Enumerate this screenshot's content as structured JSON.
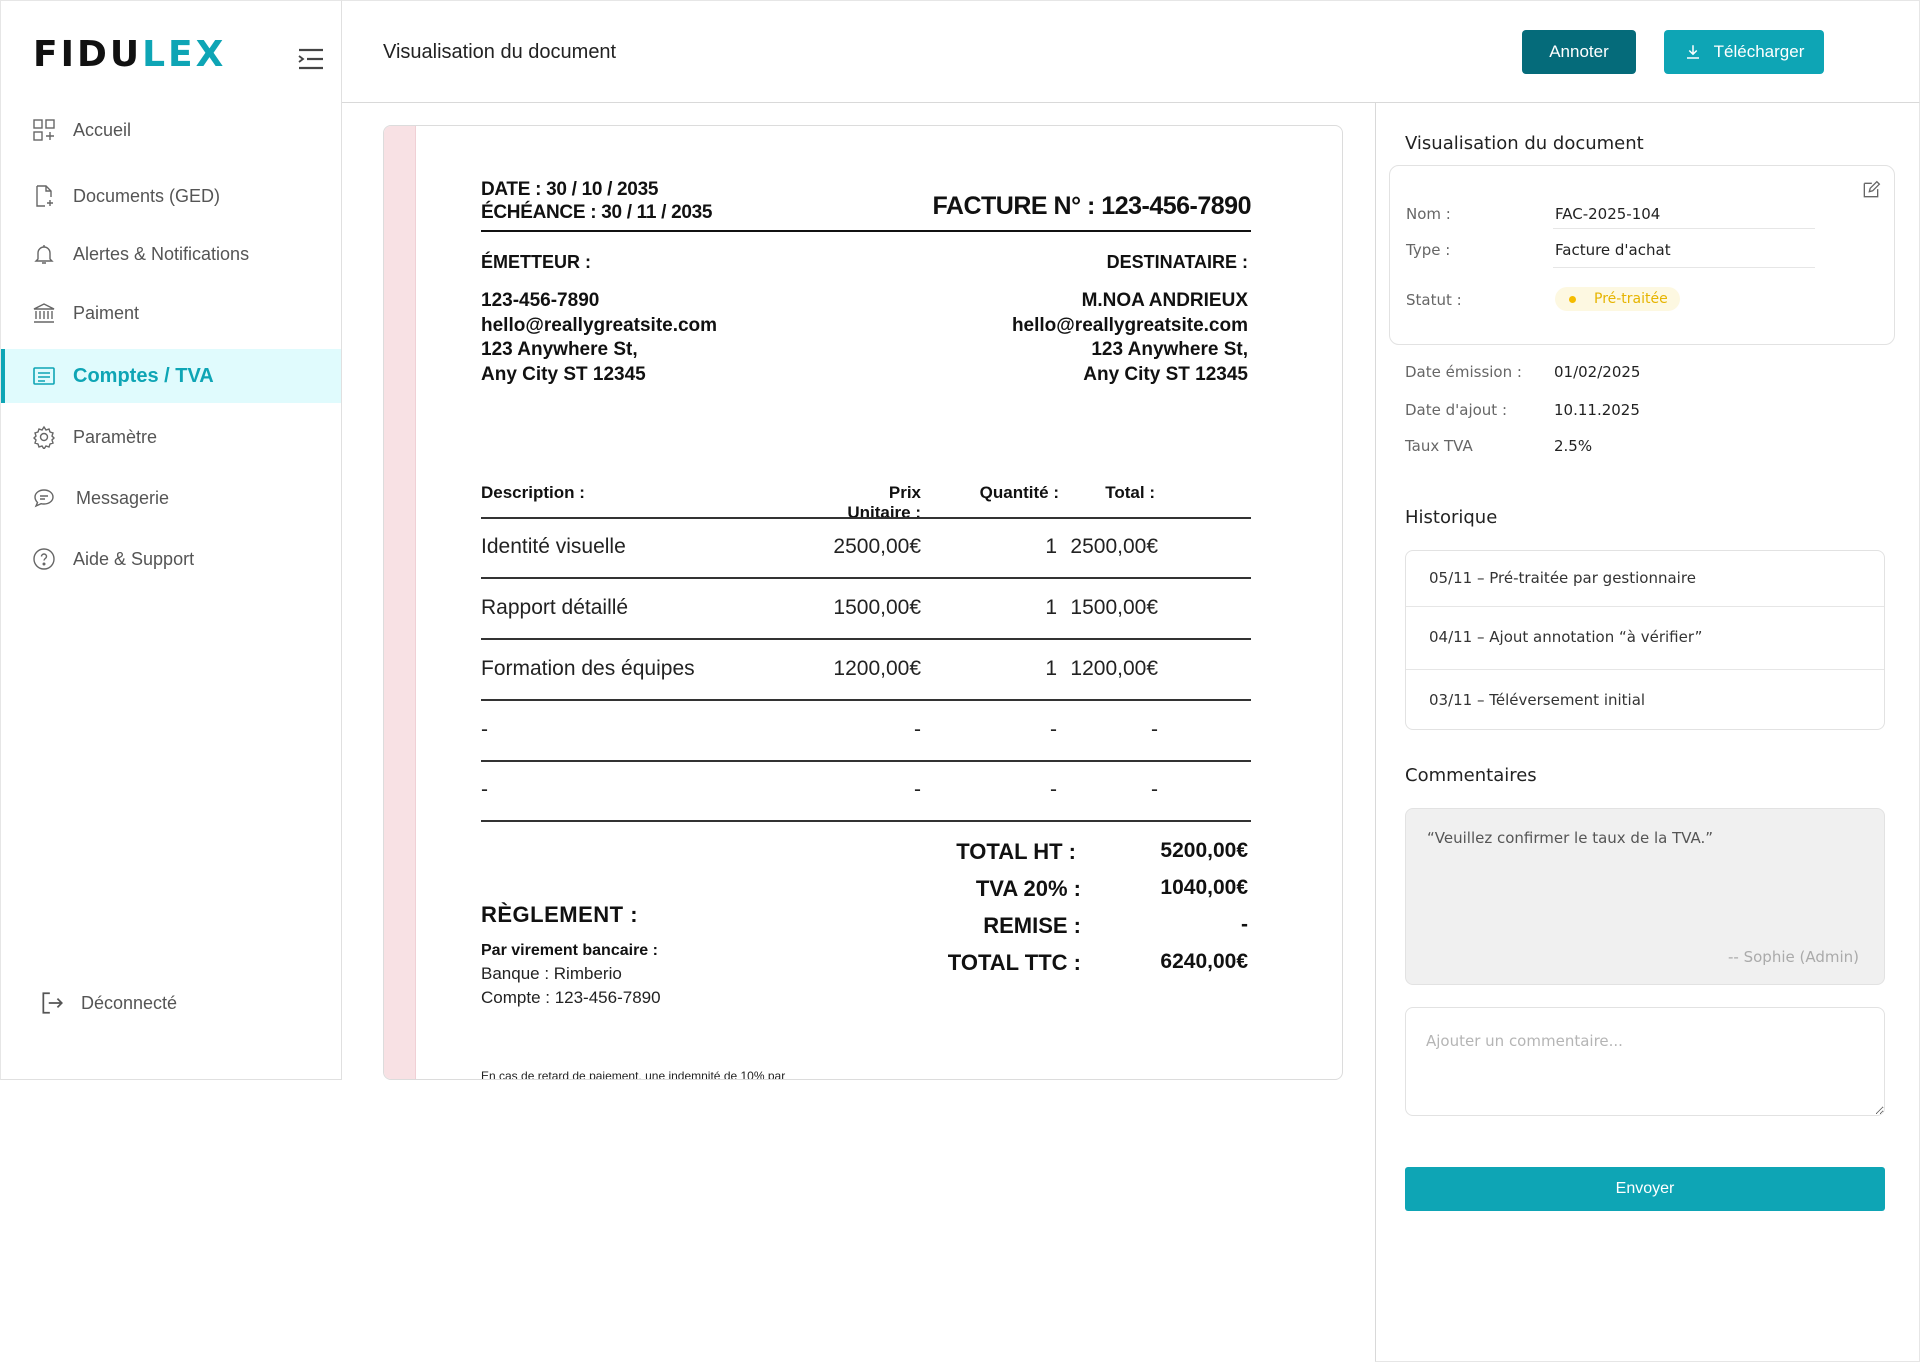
{
  "sidebar": {
    "logo_main": "FIDU",
    "logo_accent": "LEX",
    "items": [
      {
        "label": "Accueil",
        "icon": "dashboard-icon"
      },
      {
        "label": "Documents (GED)",
        "icon": "document-add-icon"
      },
      {
        "label": "Alertes & Notifications",
        "icon": "bell-icon"
      },
      {
        "label": "Paiment",
        "icon": "bank-icon"
      },
      {
        "label": "Comptes / TVA",
        "icon": "ledger-icon",
        "active": true
      },
      {
        "label": "Paramètre",
        "icon": "gear-icon"
      },
      {
        "label": "Messagerie",
        "icon": "chat-icon"
      },
      {
        "label": "Aide & Support",
        "icon": "help-icon"
      }
    ],
    "logout": "Déconnecté"
  },
  "header": {
    "title": "Visualisation du document",
    "annotate": "Annoter",
    "download": "Télécharger"
  },
  "invoice": {
    "date": "DATE : 30 / 10 / 2035",
    "due": "ÉCHÉANCE : 30 / 11 / 2035",
    "number": "FACTURE N° : 123-456-7890",
    "issuer_label": "ÉMETTEUR :",
    "recipient_label": "DESTINATAIRE :",
    "issuer": [
      "123-456-7890",
      "hello@reallygreatsite.com",
      "123 Anywhere St,",
      "Any City ST 12345"
    ],
    "recipient": [
      "M.NOA ANDRIEUX",
      "hello@reallygreatsite.com",
      "123 Anywhere St,",
      "Any City ST 12345"
    ],
    "columns": [
      "Description :",
      "Prix Unitaire :",
      "Quantité :",
      "Total :"
    ],
    "rows": [
      [
        "Identité visuelle",
        "2500,00€",
        "1",
        "2500,00€"
      ],
      [
        "Rapport détaillé",
        "1500,00€",
        "1",
        "1500,00€"
      ],
      [
        "Formation des équipes",
        "1200,00€",
        "1",
        "1200,00€"
      ],
      [
        "-",
        "-",
        "-",
        "-"
      ],
      [
        "-",
        "-",
        "-",
        "-"
      ]
    ],
    "totals": [
      {
        "label": "TOTAL HT :",
        "value": "5200,00€"
      },
      {
        "label": "TVA 20% :",
        "value": "1040,00€"
      },
      {
        "label": "REMISE :",
        "value": "-"
      },
      {
        "label": "TOTAL TTC :",
        "value": "6240,00€"
      }
    ],
    "payment_title": "RÈGLEMENT  :",
    "payment_method": "Par virement bancaire :",
    "bank": "Banque : Rimberio",
    "account": "Compte : 123-456-7890",
    "footnote": "En cas de retard de paiement, une indemnité de 10% par"
  },
  "panel": {
    "title": "Visualisation du document",
    "name_label": "Nom :",
    "name_value": "FAC-2025-104",
    "type_label": "Type :",
    "type_value": "Facture d'achat",
    "status_label": "Statut :",
    "status_value": "Pré-traitée",
    "status_color": "#f5bc00",
    "issue_label": "Date émission :",
    "issue_value": "01/02/2025",
    "added_label": "Date d'ajout :",
    "added_value": "10.11.2025",
    "vat_label": "Taux TVA",
    "vat_value": "2.5%",
    "history_title": "Historique",
    "history": [
      "05/11 – Pré-traitée par gestionnaire",
      "04/11 – Ajout annotation “à vérifier”",
      "03/11 – Téléversement initial"
    ],
    "comments_title": "Commentaires",
    "comment_text": "“Veuillez confirmer le taux de la TVA.”",
    "comment_author": "-- Sophie (Admin)",
    "comment_placeholder": "Ajouter un commentaire...",
    "send": "Envoyer"
  },
  "colors": {
    "accent": "#0ea5b5",
    "dark_accent": "#056b7a"
  }
}
